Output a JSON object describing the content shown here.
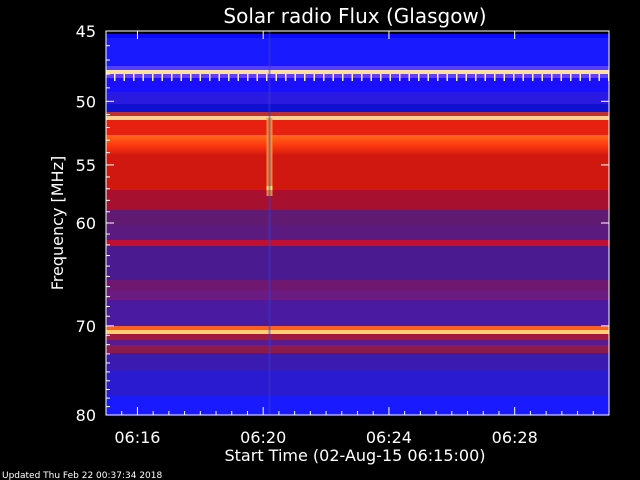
{
  "chart_data": {
    "type": "heatmap",
    "title": "Solar radio Flux (Glasgow)",
    "xlabel": "Start Time (02-Aug-15 06:15:00)",
    "ylabel": "Frequency [MHz]",
    "footer": "Updated Thu Feb 22 00:37:34 2018",
    "x_start_min": 15,
    "x_end_min": 31,
    "x_ticks": [
      {
        "min": 16,
        "label": "06:16"
      },
      {
        "min": 20,
        "label": "06:20"
      },
      {
        "min": 24,
        "label": "06:24"
      },
      {
        "min": 28,
        "label": "06:28"
      }
    ],
    "y_ticks": [
      {
        "value": 45,
        "label": "45"
      },
      {
        "value": 50,
        "label": "50"
      },
      {
        "value": 55,
        "label": "55"
      },
      {
        "value": 60,
        "label": "60"
      },
      {
        "value": 70,
        "label": "70"
      },
      {
        "value": 80,
        "label": "80"
      }
    ],
    "ylim": [
      45,
      80
    ],
    "y_scale": "log",
    "colors": {
      "background": "#000000",
      "low": "#1a1aff",
      "mid": "#c00020",
      "high": "#ff4a1a",
      "peak": "#ffd060"
    }
  }
}
